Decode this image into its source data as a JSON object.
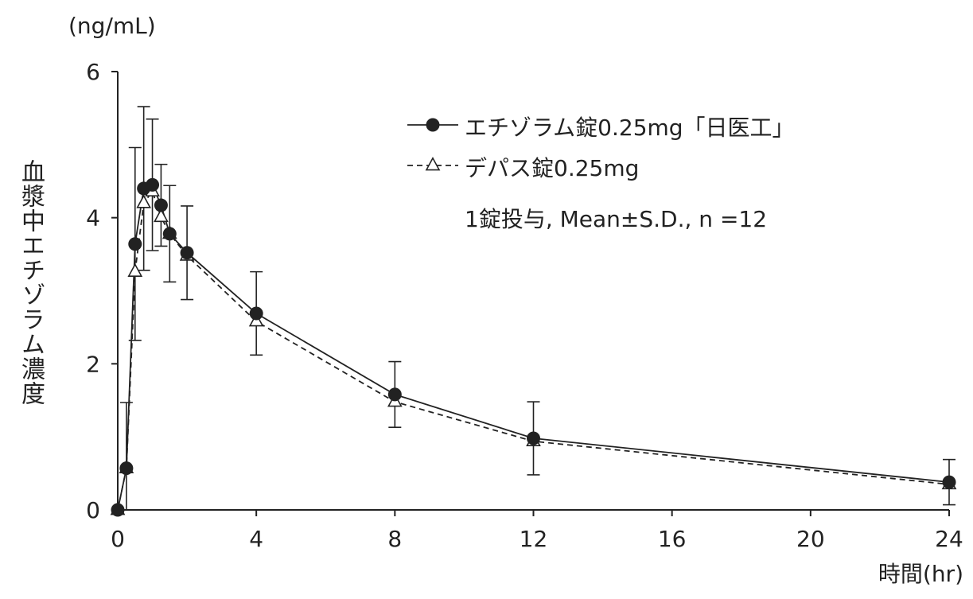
{
  "chart_data": {
    "type": "line",
    "unit_label": "(ng/mL)",
    "ylabel": "血漿中エチゾラム濃度",
    "xlabel": "時間(hr)",
    "xlim": [
      0,
      24
    ],
    "ylim": [
      0,
      6
    ],
    "xticks": [
      "0",
      "4",
      "8",
      "12",
      "16",
      "20",
      "24"
    ],
    "yticks": [
      "0",
      "2",
      "4",
      "6"
    ],
    "annotation": "1錠投与, Mean±S.D., n =12",
    "legend_position": "top-right",
    "x": [
      0,
      0.25,
      0.5,
      0.75,
      1,
      1.25,
      1.5,
      2,
      4,
      8,
      12,
      24
    ],
    "series": [
      {
        "name": "エチゾラム錠0.25mg「日医工」",
        "marker": "filled-circle",
        "line": "solid",
        "values": [
          0,
          0.57,
          3.64,
          4.4,
          4.45,
          4.17,
          3.78,
          3.52,
          2.69,
          1.58,
          0.98,
          0.38
        ],
        "sd": [
          0,
          0.9,
          1.32,
          1.12,
          0.9,
          0.56,
          0.66,
          0.64,
          0.57,
          0.45,
          0.5,
          0.31
        ]
      },
      {
        "name": "デパス錠0.25mg",
        "marker": "open-triangle",
        "line": "dashed",
        "values": [
          0,
          0.57,
          3.26,
          4.2,
          4.36,
          4.01,
          3.78,
          3.48,
          2.58,
          1.48,
          0.94,
          0.35
        ],
        "sd": [
          0,
          0.9,
          1.0,
          0.9,
          0.8,
          0.5,
          0.6,
          0.55,
          0.5,
          0.4,
          0.45,
          0.3
        ]
      }
    ],
    "colors": {
      "line": "#222222",
      "background": "#ffffff"
    }
  }
}
